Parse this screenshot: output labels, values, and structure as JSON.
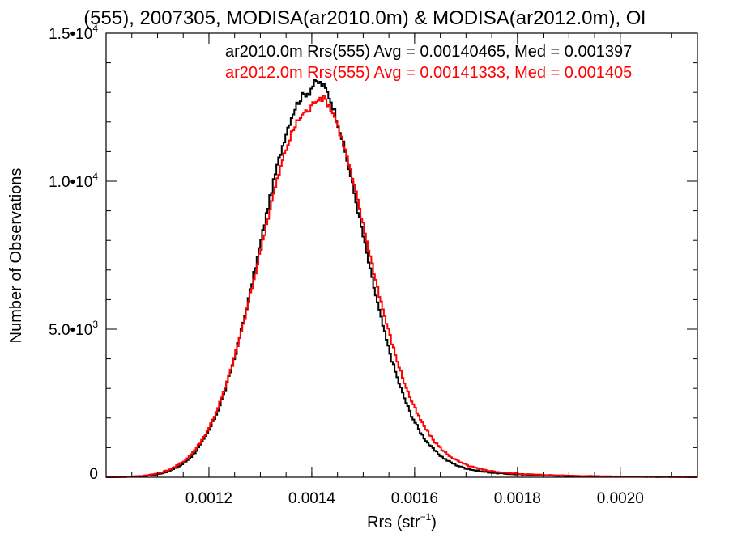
{
  "chart_data": {
    "type": "line",
    "title": "(555), 2007305, MODISA(ar2010.0m) & MODISA(ar2012.0m), Ol",
    "xlabel": "Rrs (str",
    "xlabel_sup": "−1",
    "xlabel_close": ")",
    "ylabel": "Number of Observations",
    "xlim": [
      0.001,
      0.00215
    ],
    "ylim": [
      0,
      15000
    ],
    "x_ticks": [
      {
        "value": 0.0012,
        "label": "0.0012"
      },
      {
        "value": 0.0014,
        "label": "0.0014"
      },
      {
        "value": 0.0016,
        "label": "0.0016"
      },
      {
        "value": 0.0018,
        "label": "0.0018"
      },
      {
        "value": 0.002,
        "label": "0.0020"
      }
    ],
    "y_ticks": [
      {
        "value": 0,
        "base": "0",
        "exp": ""
      },
      {
        "value": 5000,
        "base": "5.0•10",
        "exp": "3"
      },
      {
        "value": 10000,
        "base": "1.0•10",
        "exp": "4"
      },
      {
        "value": 15000,
        "base": "1.5•10",
        "exp": "4"
      }
    ],
    "x_minor_step": 5e-05,
    "y_minor_step": 1000,
    "grid": false,
    "legend_position": "top-right",
    "series": [
      {
        "name": "ar2010.0m Rrs(555) Avg = 0.00140465, Med = 0.001397",
        "color": "#000000",
        "peak": 13000,
        "mu": 0.001395,
        "sigma_left": 9.5e-05,
        "sigma_right": 9.8e-05,
        "tail": 2100,
        "tail_scale": 0.00013
      },
      {
        "name": "ar2012.0m Rrs(555) Avg = 0.00141333, Med = 0.001405",
        "color": "#ff0000",
        "peak": 12400,
        "mu": 0.001397,
        "sigma_left": 9.85e-05,
        "sigma_right": 0.000104,
        "tail": 2300,
        "tail_scale": 0.000135
      }
    ]
  }
}
